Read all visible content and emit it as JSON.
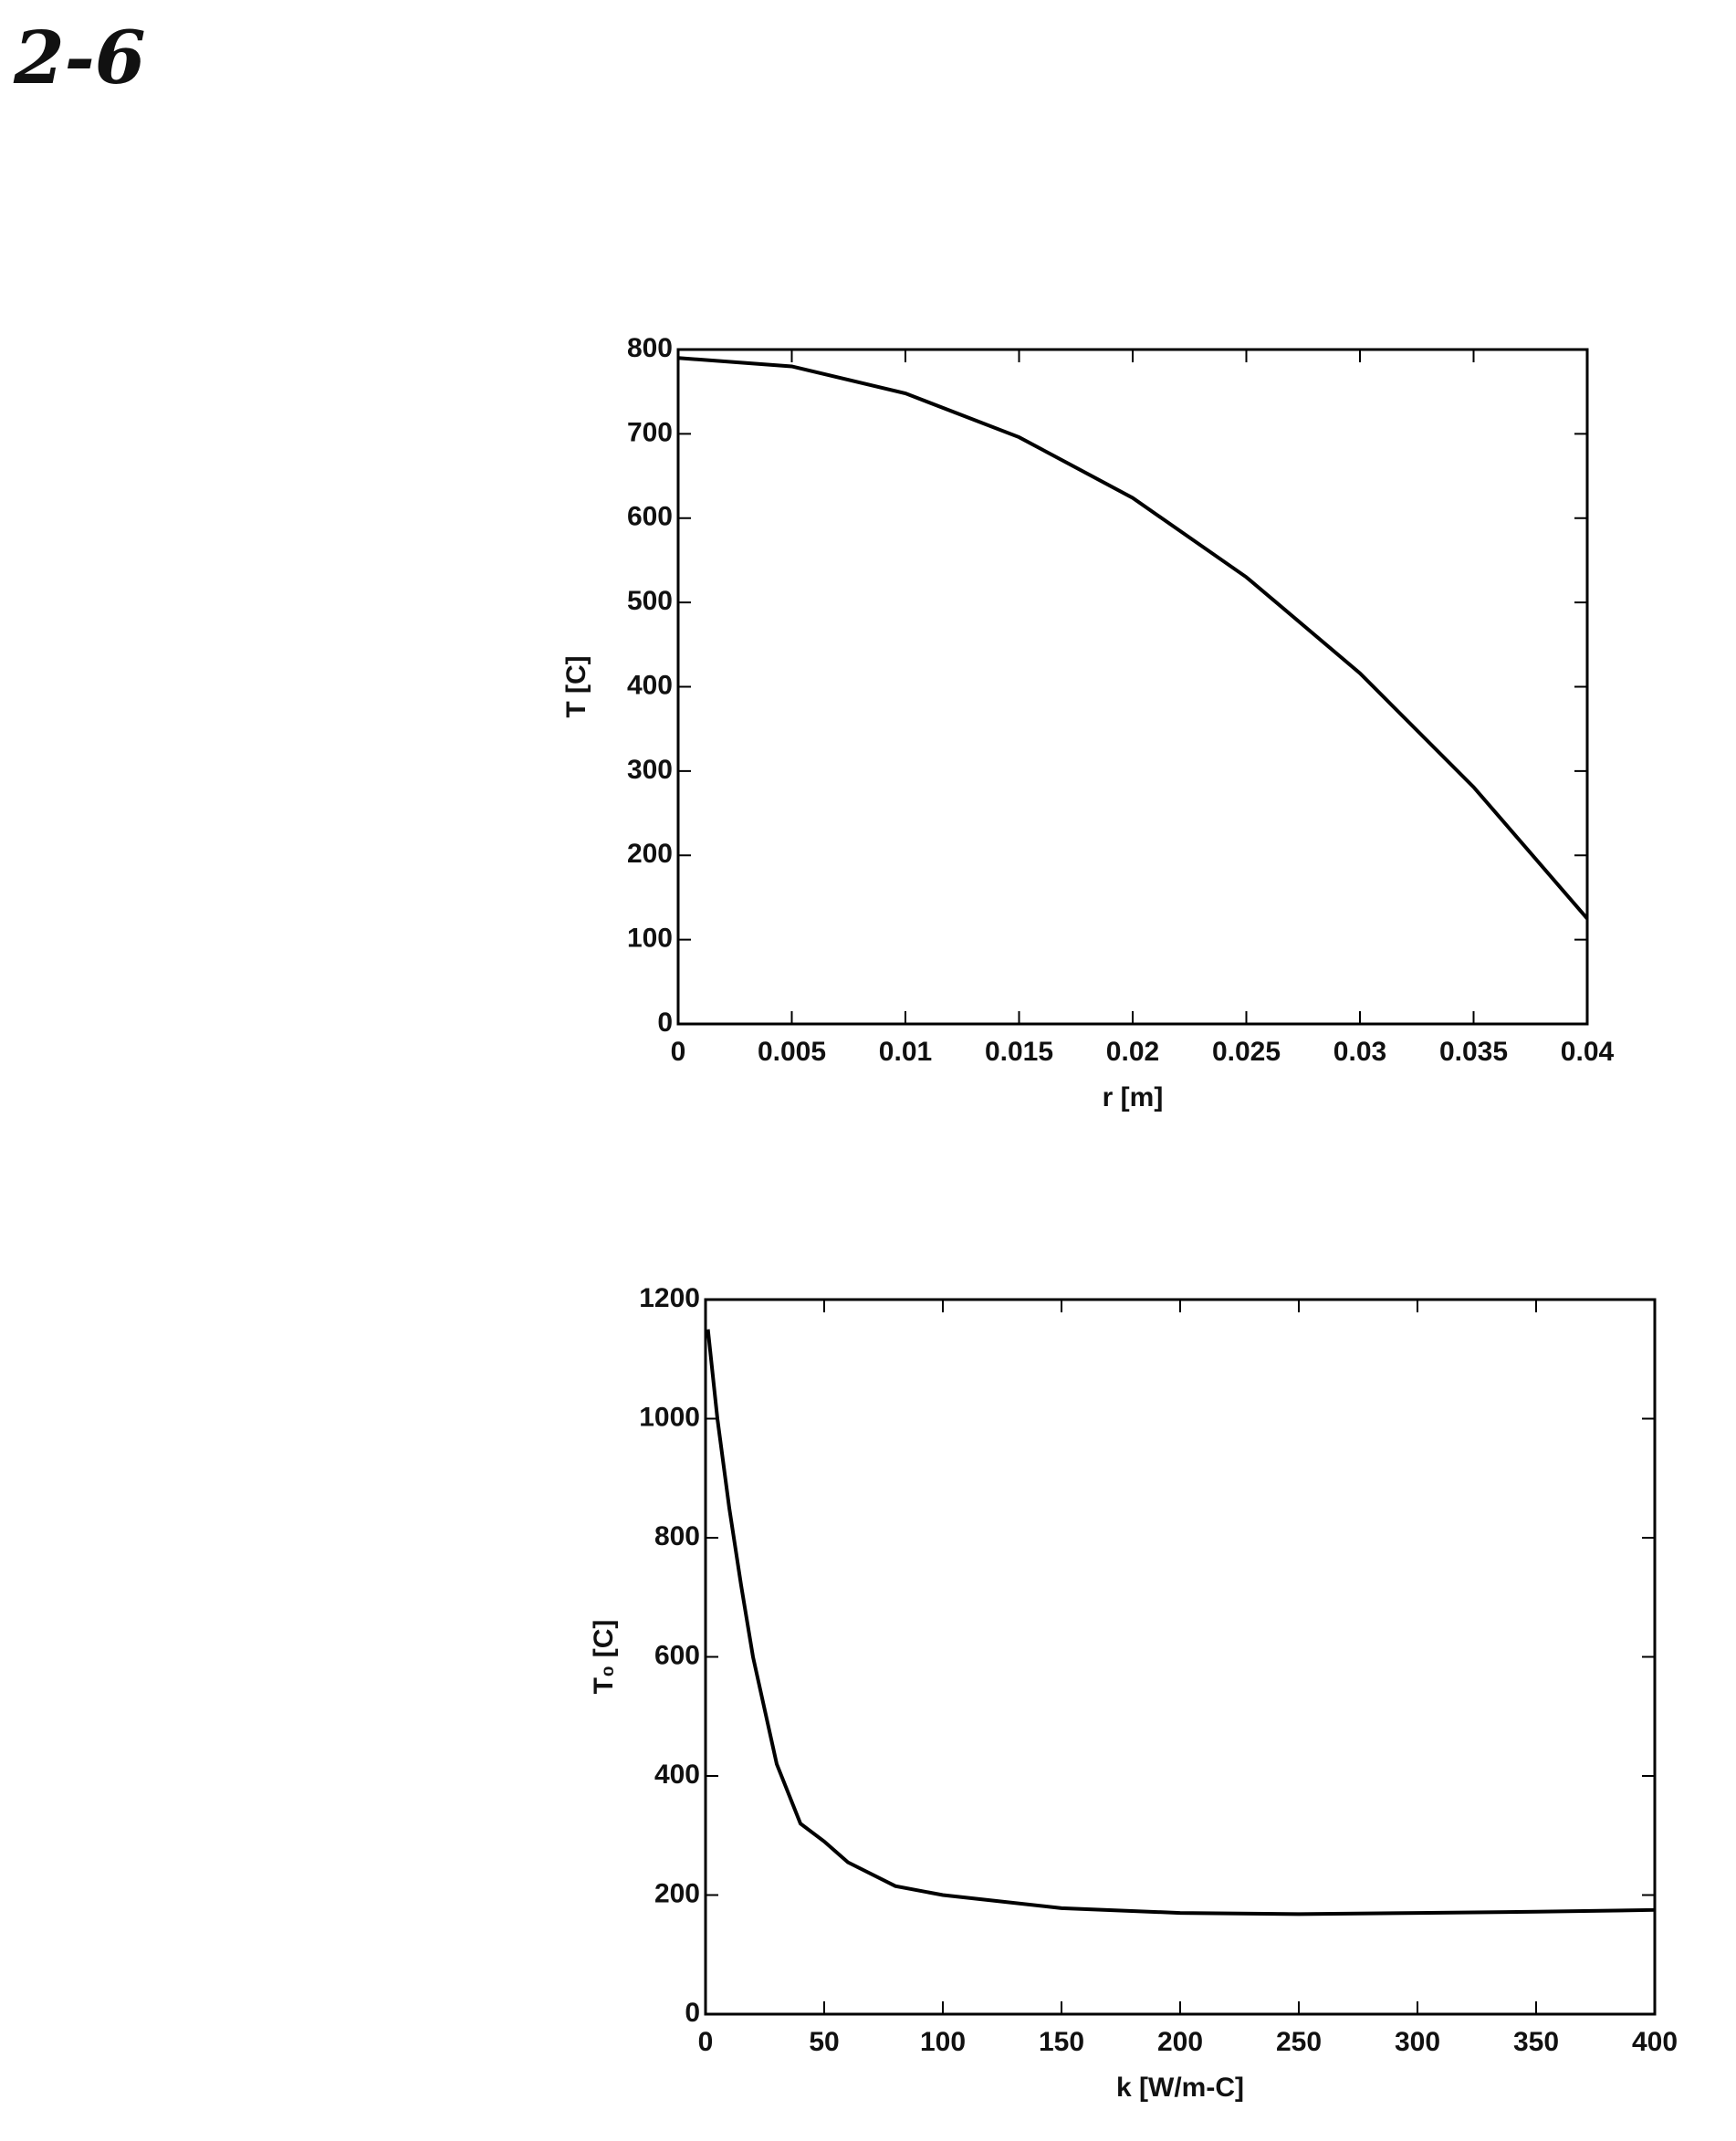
{
  "annotation": "2-6",
  "chart_data": [
    {
      "type": "line",
      "x_label": "r [m]",
      "y_label": "T [C]",
      "x": [
        0,
        0.005,
        0.01,
        0.015,
        0.02,
        0.025,
        0.03,
        0.035,
        0.04
      ],
      "series": [
        {
          "color": "#000000",
          "values": [
            790,
            780,
            748,
            696,
            624,
            530,
            416,
            281,
            125
          ]
        }
      ],
      "xlim": [
        0,
        0.04
      ],
      "xticks": [
        0,
        0.005,
        0.01,
        0.015,
        0.02,
        0.025,
        0.03,
        0.035,
        0.04
      ],
      "ylim": [
        0,
        800
      ],
      "yticks": [
        0,
        100,
        200,
        300,
        400,
        500,
        600,
        700,
        800
      ],
      "grid": false
    },
    {
      "type": "line",
      "x_label": "k  [W/m-C]",
      "y_label": "T₀  [C]",
      "x": [
        1,
        5,
        10,
        15,
        20,
        30,
        40,
        50,
        60,
        80,
        100,
        150,
        200,
        250,
        300,
        350,
        400
      ],
      "series": [
        {
          "color": "#000000",
          "values": [
            1150,
            1000,
            850,
            720,
            600,
            420,
            320,
            290,
            255,
            215,
            200,
            178,
            170,
            168,
            170,
            172,
            175
          ]
        }
      ],
      "xlim": [
        0,
        400
      ],
      "xticks": [
        0,
        50,
        100,
        150,
        200,
        250,
        300,
        350,
        400
      ],
      "ylim": [
        0,
        1200
      ],
      "yticks": [
        0,
        200,
        400,
        600,
        800,
        1000,
        1200
      ],
      "grid": false
    }
  ]
}
